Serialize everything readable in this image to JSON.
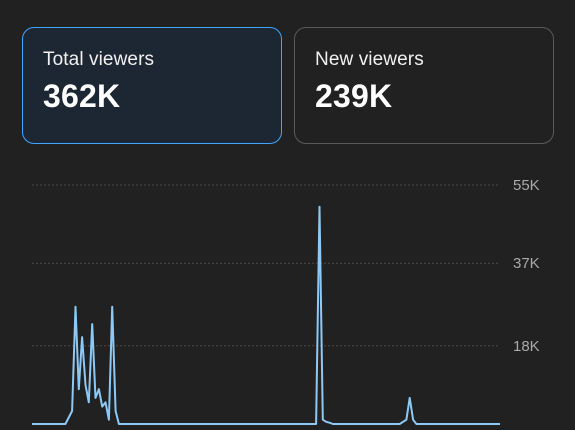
{
  "cards": [
    {
      "label": "Total viewers",
      "value": "362K",
      "selected": true
    },
    {
      "label": "New viewers",
      "value": "239K",
      "selected": false
    }
  ],
  "colors": {
    "background": "#212121",
    "accent": "#3ea6ff",
    "line": "#8ec9f5",
    "grid": "#4a4a4a",
    "tick": "#aaaaaa"
  },
  "chart_data": {
    "type": "line",
    "title": "",
    "xlabel": "",
    "ylabel": "",
    "grid": true,
    "ylim": [
      0,
      55000
    ],
    "y_ticks": [
      {
        "value": 55000,
        "label": "55K"
      },
      {
        "value": 37000,
        "label": "37K"
      },
      {
        "value": 18000,
        "label": "18K"
      }
    ],
    "x": [
      0,
      10,
      12,
      13,
      14,
      15,
      16,
      17,
      18,
      19,
      20,
      21,
      22,
      23,
      24,
      25,
      26,
      27,
      28,
      29,
      30,
      31,
      32,
      33,
      34,
      35,
      40,
      60,
      80,
      85,
      86,
      87,
      88,
      89,
      90,
      95,
      100,
      110,
      112,
      113,
      114,
      115,
      116,
      140
    ],
    "series": [
      {
        "values": [
          0,
          0,
          3000,
          27000,
          8000,
          20000,
          9000,
          5000,
          23000,
          6000,
          8000,
          4000,
          5000,
          1000,
          27000,
          3000,
          0,
          0,
          0,
          0,
          0,
          0,
          0,
          0,
          0,
          0,
          0,
          0,
          0,
          0,
          50000,
          1000,
          500,
          300,
          0,
          0,
          0,
          0,
          1000,
          6000,
          1000,
          0,
          0,
          0
        ]
      }
    ]
  }
}
